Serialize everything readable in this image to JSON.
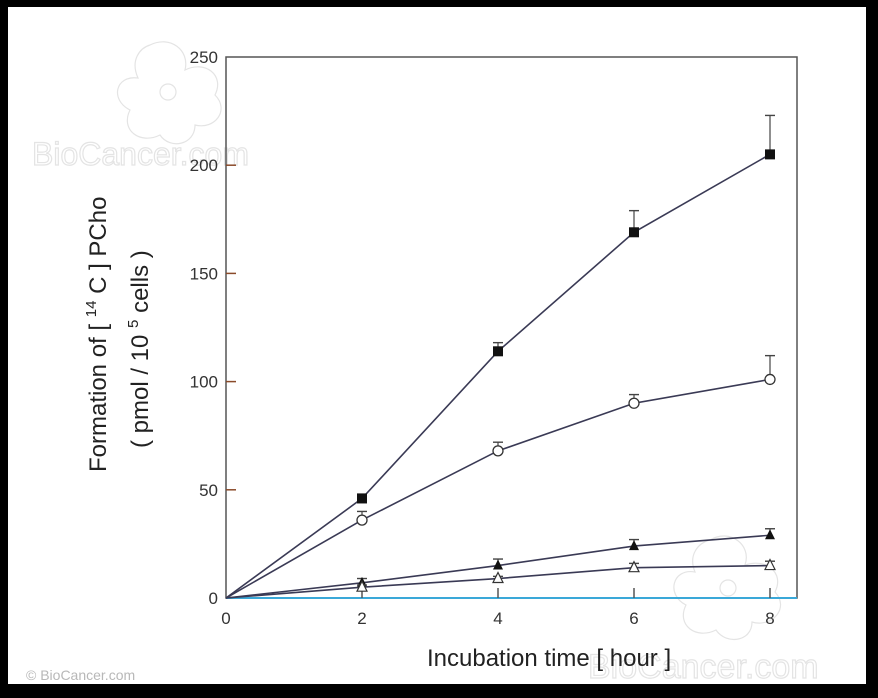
{
  "chart_data": {
    "type": "line",
    "title": "",
    "xlabel": "Incubation time  [ hour ]",
    "ylabel_line1": "Formation of  [ 14 C ] PCho",
    "ylabel_line2": "( pmol / 10 5 cells )",
    "ylabel": "Formation of [14C] PCho (pmol / 10^5 cells)",
    "x": [
      0,
      2,
      4,
      6,
      8
    ],
    "xlim": [
      0,
      8.4
    ],
    "ylim": [
      0,
      250
    ],
    "xticks": [
      0,
      2,
      4,
      6,
      8
    ],
    "yticks": [
      0,
      50,
      100,
      150,
      200,
      250
    ],
    "grid": false,
    "legend": "none",
    "series": [
      {
        "name": "filled-square",
        "marker": "square-filled",
        "values": [
          0,
          46,
          114,
          169,
          205
        ],
        "errors": [
          0,
          2,
          4,
          10,
          18
        ]
      },
      {
        "name": "open-circle",
        "marker": "circle-open",
        "values": [
          0,
          36,
          68,
          90,
          101
        ],
        "errors": [
          0,
          4,
          4,
          4,
          11
        ]
      },
      {
        "name": "filled-triangle",
        "marker": "triangle-filled",
        "values": [
          0,
          7,
          15,
          24,
          29
        ],
        "errors": [
          0,
          2,
          3,
          3,
          3
        ]
      },
      {
        "name": "open-triangle",
        "marker": "triangle-open",
        "values": [
          0,
          5,
          9,
          14,
          15
        ],
        "errors": [
          0,
          1,
          1,
          2,
          2
        ]
      }
    ]
  },
  "axes": {
    "x_tick_labels": [
      "0",
      "2",
      "4",
      "6",
      "8"
    ],
    "y_tick_labels": [
      "0",
      "50",
      "100",
      "150",
      "200",
      "250"
    ],
    "xlabel": "Incubation time  [ hour ]",
    "ylabel_main": "Formation of  [",
    "ylabel_sup": "14",
    "ylabel_rest": "C ] PCho",
    "ylabel2_main": "( pmol / 10",
    "ylabel2_sup": "5",
    "ylabel2_rest": "cells )"
  },
  "watermark": {
    "text": "BioCancer.com",
    "copyright": "© BioCancer.com"
  },
  "colors": {
    "frame": "#000000",
    "background": "#ffffff",
    "axis": "#555555",
    "line": "#3a3a55",
    "watermark": "#e4e4e4"
  }
}
